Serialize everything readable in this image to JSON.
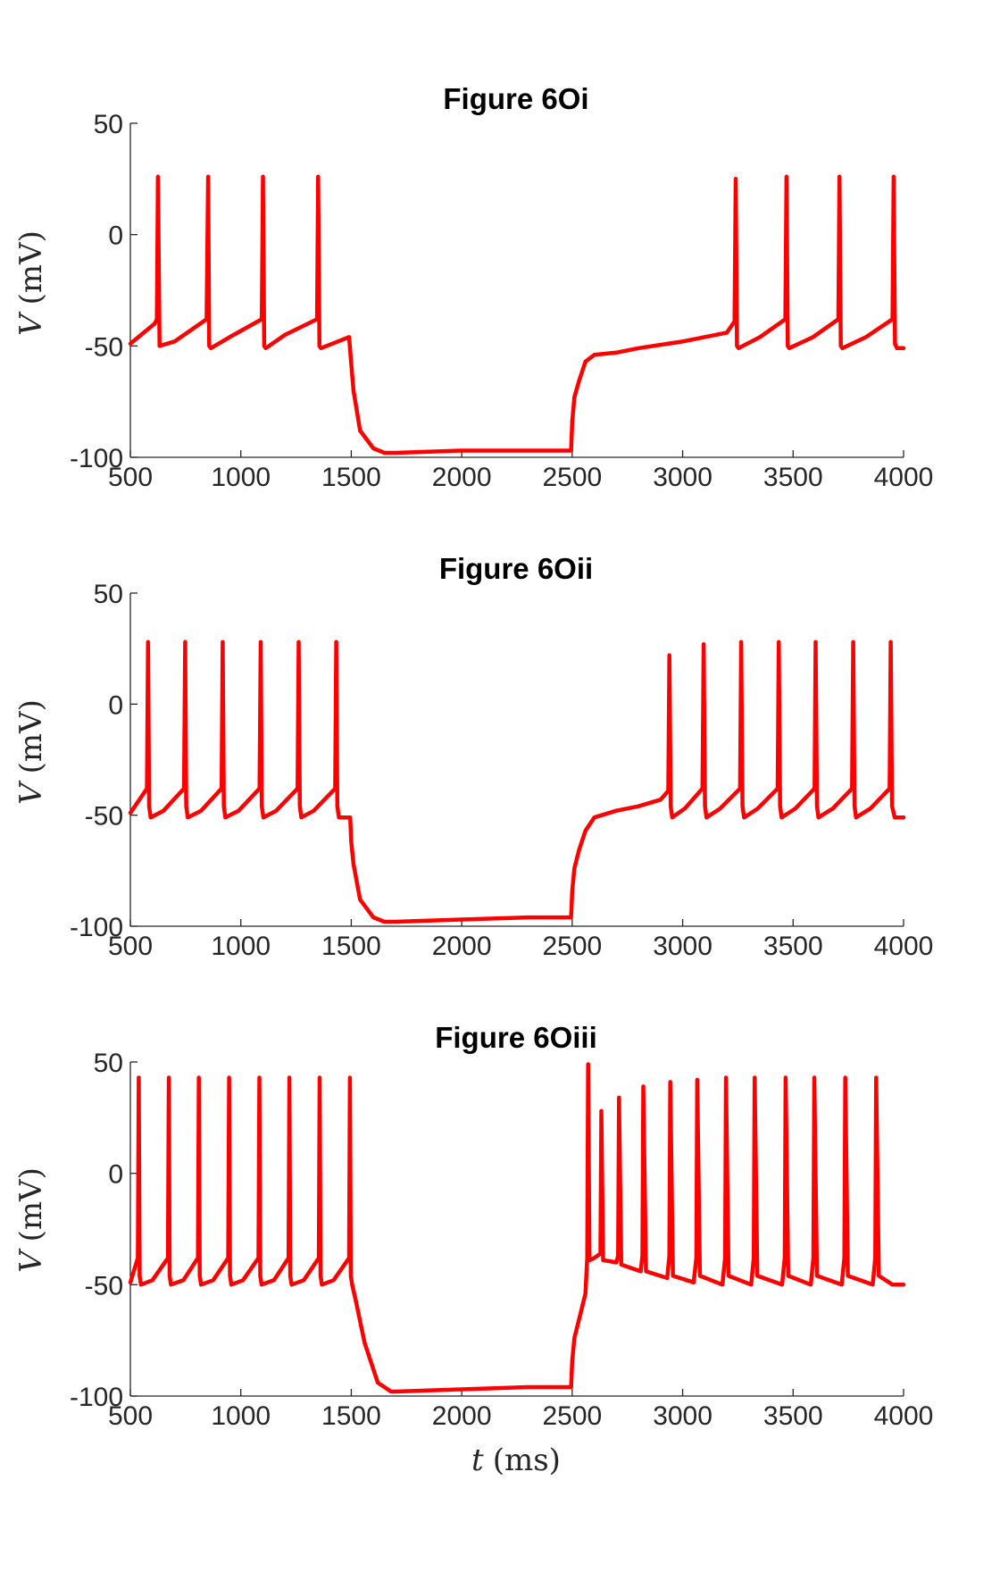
{
  "chart_data": [
    {
      "type": "line",
      "title": "Figure 6Oi",
      "ylabel_var": "V",
      "ylabel_unit": "(mV)",
      "xlabel_var": "",
      "xlabel_unit": "",
      "xlim": [
        500,
        4000
      ],
      "ylim": [
        -100,
        50
      ],
      "xticks": [
        "500",
        "1000",
        "1500",
        "2000",
        "2500",
        "3000",
        "3500",
        "4000"
      ],
      "yticks": [
        "50",
        "0",
        "-50",
        "-100"
      ],
      "grid": false,
      "series": [
        {
          "color": "#ff0000",
          "x": [
            500,
            610,
            620,
            625,
            632,
            700,
            845,
            852,
            857,
            865,
            950,
            1095,
            1100,
            1106,
            1113,
            1200,
            1345,
            1350,
            1356,
            1363,
            1440,
            1490,
            1500,
            1510,
            1540,
            1600,
            1650,
            1700,
            2000,
            2300,
            2495,
            2500,
            2510,
            2530,
            2560,
            2600,
            2700,
            2800,
            3000,
            3200,
            3235,
            3240,
            3246,
            3253,
            3350,
            3465,
            3470,
            3476,
            3483,
            3590,
            3705,
            3710,
            3716,
            3723,
            3830,
            3950,
            3955,
            3961,
            3970,
            4000
          ],
          "y": [
            -49,
            -40,
            -38,
            26,
            -50,
            -48,
            -38,
            26,
            -50,
            -51,
            -46,
            -38,
            26,
            -50,
            -51,
            -45,
            -38,
            26,
            -50,
            -51,
            -48,
            -46,
            -58,
            -70,
            -88,
            -96,
            -98,
            -98,
            -97,
            -97,
            -97,
            -84,
            -73,
            -66,
            -57,
            -54,
            -53,
            -51,
            -48,
            -44,
            -39,
            25,
            -50,
            -51,
            -46,
            -38,
            26,
            -50,
            -51,
            -46,
            -38,
            26,
            -50,
            -51,
            -46,
            -38,
            26,
            -49,
            -51,
            -51
          ]
        }
      ]
    },
    {
      "type": "line",
      "title": "Figure 6Oii",
      "ylabel_var": "V",
      "ylabel_unit": "(mV)",
      "xlabel_var": "",
      "xlabel_unit": "",
      "xlim": [
        500,
        4000
      ],
      "ylim": [
        -100,
        50
      ],
      "xticks": [
        "500",
        "1000",
        "1500",
        "2000",
        "2500",
        "3000",
        "3500",
        "4000"
      ],
      "yticks": [
        "50",
        "0",
        "-50",
        "-100"
      ],
      "grid": false,
      "series": [
        {
          "color": "#ff0000",
          "x": [
            500,
            575,
            580,
            585,
            592,
            650,
            743,
            748,
            753,
            760,
            820,
            913,
            918,
            923,
            930,
            990,
            1085,
            1090,
            1095,
            1102,
            1160,
            1257,
            1262,
            1267,
            1274,
            1330,
            1427,
            1432,
            1437,
            1444,
            1495,
            1500,
            1510,
            1540,
            1600,
            1650,
            1700,
            2000,
            2300,
            2495,
            2500,
            2510,
            2530,
            2560,
            2600,
            2700,
            2800,
            2900,
            2935,
            2940,
            2946,
            2953,
            3010,
            3090,
            3095,
            3101,
            3108,
            3170,
            3260,
            3265,
            3271,
            3278,
            3340,
            3430,
            3435,
            3441,
            3448,
            3510,
            3597,
            3602,
            3608,
            3615,
            3680,
            3767,
            3772,
            3778,
            3785,
            3850,
            3937,
            3942,
            3948,
            3960,
            4000
          ],
          "y": [
            -49,
            -38,
            28,
            -46,
            -51,
            -48,
            -38,
            28,
            -46,
            -51,
            -48,
            -38,
            28,
            -46,
            -51,
            -48,
            -38,
            28,
            -46,
            -51,
            -48,
            -38,
            28,
            -46,
            -51,
            -48,
            -38,
            28,
            -46,
            -51,
            -51,
            -62,
            -72,
            -88,
            -96,
            -98,
            -98,
            -97,
            -96,
            -96,
            -84,
            -74,
            -66,
            -57,
            -51,
            -48,
            -46,
            -43,
            -39,
            22,
            -46,
            -51,
            -47,
            -38,
            27,
            -46,
            -51,
            -47,
            -38,
            28,
            -46,
            -51,
            -47,
            -38,
            28,
            -46,
            -51,
            -47,
            -38,
            28,
            -46,
            -51,
            -47,
            -38,
            28,
            -46,
            -51,
            -47,
            -38,
            28,
            -46,
            -51,
            -51
          ]
        }
      ]
    },
    {
      "type": "line",
      "title": "Figure 6Oiii",
      "ylabel_var": "V",
      "ylabel_unit": "(mV)",
      "xlabel_var": "t",
      "xlabel_unit": "(ms)",
      "xlim": [
        500,
        4000
      ],
      "ylim": [
        -100,
        50
      ],
      "xticks": [
        "500",
        "1000",
        "1500",
        "2000",
        "2500",
        "3000",
        "3500",
        "4000"
      ],
      "yticks": [
        "50",
        "0",
        "-50",
        "-100"
      ],
      "grid": false,
      "series": [
        {
          "color": "#ff0000",
          "x": [
            500,
            534,
            538,
            542,
            548,
            600,
            670,
            674,
            678,
            684,
            740,
            806,
            810,
            814,
            820,
            875,
            943,
            947,
            951,
            957,
            1010,
            1080,
            1084,
            1088,
            1094,
            1150,
            1216,
            1220,
            1224,
            1230,
            1285,
            1353,
            1357,
            1361,
            1367,
            1420,
            1490,
            1494,
            1498,
            1504,
            1520,
            1560,
            1620,
            1680,
            1700,
            2000,
            2300,
            2495,
            2500,
            2510,
            2530,
            2560,
            2568,
            2572,
            2578,
            2600,
            2628,
            2632,
            2640,
            2700,
            2708,
            2712,
            2722,
            2810,
            2818,
            2822,
            2834,
            2930,
            2940,
            2944,
            2956,
            3050,
            3062,
            3066,
            3078,
            3180,
            3192,
            3196,
            3208,
            3310,
            3322,
            3326,
            3338,
            3450,
            3462,
            3466,
            3478,
            3580,
            3592,
            3596,
            3608,
            3720,
            3732,
            3736,
            3748,
            3860,
            3872,
            3876,
            3888,
            3950,
            4000
          ],
          "y": [
            -49,
            -38,
            43,
            -46,
            -50,
            -48,
            -38,
            43,
            -46,
            -50,
            -48,
            -38,
            43,
            -46,
            -50,
            -48,
            -38,
            43,
            -46,
            -50,
            -48,
            -38,
            43,
            -46,
            -50,
            -48,
            -38,
            43,
            -46,
            -50,
            -48,
            -38,
            43,
            -46,
            -50,
            -48,
            -38,
            43,
            -46,
            -50,
            -57,
            -76,
            -94,
            -98,
            -98,
            -97,
            -96,
            -96,
            -84,
            -74,
            -66,
            -54,
            -38,
            49,
            -39,
            -38,
            -36,
            28,
            -39,
            -40,
            -37,
            34,
            -41,
            -44,
            -37,
            39,
            -44,
            -47,
            -37,
            41,
            -46,
            -49,
            -38,
            42,
            -46,
            -50,
            -38,
            43,
            -46,
            -50,
            -38,
            43,
            -46,
            -50,
            -38,
            43,
            -46,
            -50,
            -38,
            43,
            -46,
            -50,
            -38,
            43,
            -46,
            -50,
            -38,
            43,
            -46,
            -50,
            -50
          ]
        }
      ]
    }
  ]
}
